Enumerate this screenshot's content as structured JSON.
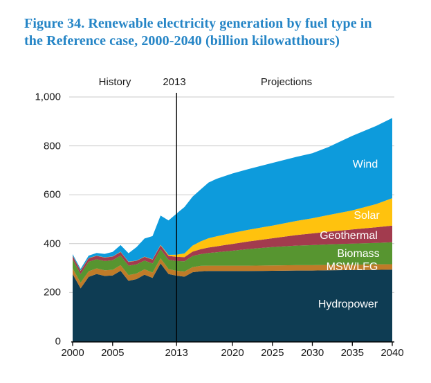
{
  "title": "Figure 34. Renewable electricity generation by fuel type in the Reference case, 2000-2040 (billion kilowatthours)",
  "header": {
    "history": "History",
    "divider_year": "2013",
    "projections": "Projections"
  },
  "colors": {
    "title_text": "#2585c6",
    "tick_text": "#1a1a1a",
    "series_label_text": "#ffffff",
    "gridline": "#c9c9c9",
    "axis_line": "#000000",
    "divider_line": "#000000",
    "background": "#ffffff"
  },
  "chart_data": {
    "type": "area",
    "stacked": true,
    "title": "Figure 34. Renewable electricity generation by fuel type in the Reference case, 2000-2040",
    "unit": "billion kilowatthours",
    "xlim": [
      2000,
      2040
    ],
    "ylim": [
      0,
      1000
    ],
    "grid": "horizontal",
    "legend_position": "labels-inside-areas",
    "divider_year": 2013,
    "phases": [
      "History",
      "Projections"
    ],
    "x_ticks": [
      {
        "year": 2000,
        "label": "2000"
      },
      {
        "year": 2005,
        "label": "2005"
      },
      {
        "year": 2013,
        "label": "2013"
      },
      {
        "year": 2020,
        "label": "2020"
      },
      {
        "year": 2025,
        "label": "2025"
      },
      {
        "year": 2030,
        "label": "2030"
      },
      {
        "year": 2035,
        "label": "2035"
      },
      {
        "year": 2040,
        "label": "2040"
      }
    ],
    "y_ticks": [
      {
        "value": 0,
        "label": "0"
      },
      {
        "value": 200,
        "label": "200"
      },
      {
        "value": 400,
        "label": "400"
      },
      {
        "value": 600,
        "label": "600"
      },
      {
        "value": 800,
        "label": "800"
      },
      {
        "value": 1000,
        "label": "1,000"
      }
    ],
    "years": [
      2000,
      2001,
      2002,
      2003,
      2004,
      2005,
      2006,
      2007,
      2008,
      2009,
      2010,
      2011,
      2012,
      2013,
      2014,
      2015,
      2016,
      2017,
      2018,
      2019,
      2020,
      2022,
      2025,
      2028,
      2030,
      2032,
      2035,
      2038,
      2040
    ],
    "series": [
      {
        "name": "Hydropower",
        "color": "#0e3c53",
        "values": [
          276,
          217,
          264,
          276,
          268,
          270,
          289,
          248,
          255,
          273,
          260,
          319,
          276,
          269,
          265,
          283,
          287,
          288,
          288,
          288,
          288,
          288,
          289,
          290,
          290,
          291,
          292,
          293,
          294
        ]
      },
      {
        "name": "MSW/LFG",
        "color": "#bf7b28",
        "values": [
          23,
          23,
          23,
          23,
          23,
          23,
          23,
          23,
          23,
          22,
          22,
          21,
          20,
          20,
          21,
          21,
          22,
          22,
          22,
          22,
          22,
          22,
          22,
          22,
          22,
          22,
          22,
          22,
          22
        ]
      },
      {
        "name": "Biomass",
        "color": "#579530",
        "values": [
          37,
          35,
          39,
          37,
          38,
          39,
          39,
          39,
          37,
          36,
          37,
          37,
          38,
          40,
          42,
          45,
          48,
          52,
          55,
          58,
          61,
          68,
          75,
          80,
          82,
          84,
          86,
          88,
          90
        ]
      },
      {
        "name": "Geothermal",
        "color": "#a23b4e",
        "values": [
          14,
          14,
          14,
          14,
          14,
          15,
          15,
          15,
          15,
          15,
          16,
          16,
          16,
          17,
          17,
          18,
          20,
          22,
          24,
          26,
          28,
          31,
          36,
          43,
          48,
          52,
          58,
          64,
          68
        ]
      },
      {
        "name": "Solar",
        "color": "#ffc20e",
        "values": [
          1,
          1,
          1,
          1,
          1,
          1,
          1,
          1,
          1,
          1,
          1,
          2,
          4,
          9,
          15,
          25,
          32,
          38,
          41,
          43,
          45,
          48,
          52,
          58,
          62,
          68,
          78,
          95,
          112
        ]
      },
      {
        "name": "Wind",
        "color": "#0d9bdc",
        "values": [
          6,
          7,
          10,
          11,
          14,
          18,
          27,
          35,
          55,
          74,
          95,
          120,
          141,
          168,
          190,
          200,
          212,
          228,
          235,
          239,
          243,
          248,
          256,
          262,
          266,
          278,
          305,
          320,
          328
        ]
      }
    ]
  }
}
